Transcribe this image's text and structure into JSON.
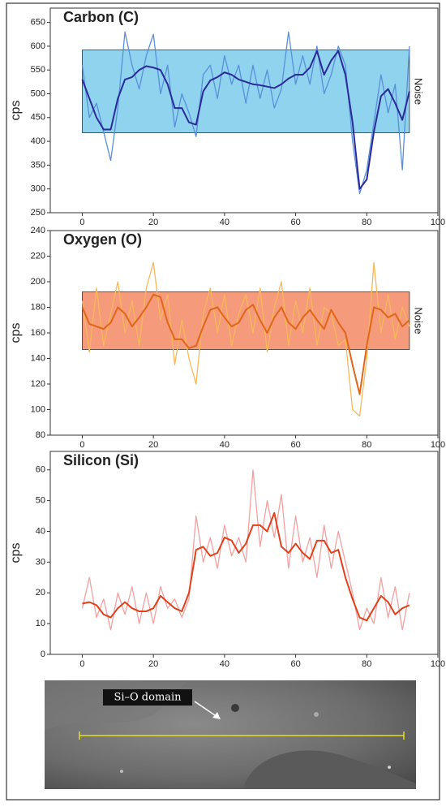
{
  "chart_data": [
    {
      "type": "line",
      "title": "Carbon (C)",
      "ylabel": "cps",
      "x": [
        0,
        2,
        4,
        6,
        8,
        10,
        12,
        14,
        16,
        18,
        20,
        22,
        24,
        26,
        28,
        30,
        32,
        34,
        36,
        38,
        40,
        42,
        44,
        46,
        48,
        50,
        52,
        54,
        56,
        58,
        60,
        62,
        64,
        66,
        68,
        70,
        72,
        74,
        76,
        78,
        80,
        82,
        84,
        86,
        88,
        90,
        92
      ],
      "xlim": [
        -9,
        100
      ],
      "xticks": [
        0,
        20,
        40,
        60,
        80,
        100
      ],
      "ylim": [
        250,
        680
      ],
      "yticks": [
        250,
        300,
        350,
        400,
        450,
        500,
        550,
        600,
        650
      ],
      "noise_band": [
        418,
        592
      ],
      "noise_label": "Noise",
      "band_color": "#8fd3ef",
      "series": [
        {
          "color": "#5a8fd8",
          "values": [
            560,
            450,
            480,
            420,
            360,
            470,
            630,
            560,
            510,
            580,
            625,
            500,
            560,
            430,
            500,
            460,
            410,
            540,
            560,
            490,
            580,
            520,
            560,
            480,
            560,
            490,
            550,
            470,
            510,
            630,
            520,
            580,
            520,
            600,
            500,
            540,
            600,
            560,
            400,
            290,
            340,
            440,
            540,
            460,
            520,
            340,
            600
          ]
        },
        {
          "color": "#2a2a9a",
          "values": [
            530,
            490,
            450,
            425,
            425,
            490,
            530,
            535,
            550,
            558,
            555,
            550,
            520,
            470,
            470,
            440,
            435,
            505,
            528,
            535,
            545,
            540,
            530,
            525,
            520,
            518,
            515,
            512,
            520,
            532,
            540,
            540,
            555,
            590,
            540,
            570,
            590,
            540,
            440,
            300,
            320,
            420,
            495,
            510,
            480,
            445,
            505
          ]
        }
      ]
    },
    {
      "type": "line",
      "title": "Oxygen (O)",
      "ylabel": "cps",
      "x": [
        0,
        2,
        4,
        6,
        8,
        10,
        12,
        14,
        16,
        18,
        20,
        22,
        24,
        26,
        28,
        30,
        32,
        34,
        36,
        38,
        40,
        42,
        44,
        46,
        48,
        50,
        52,
        54,
        56,
        58,
        60,
        62,
        64,
        66,
        68,
        70,
        72,
        74,
        76,
        78,
        80,
        82,
        84,
        86,
        88,
        90,
        92
      ],
      "xlim": [
        -9,
        100
      ],
      "xticks": [
        0,
        20,
        40,
        60,
        80,
        100
      ],
      "ylim": [
        80,
        240
      ],
      "yticks": [
        80,
        100,
        120,
        140,
        160,
        180,
        200,
        220,
        240
      ],
      "noise_band": [
        147,
        192
      ],
      "noise_label": "Noise",
      "band_color": "#f59a7a",
      "series": [
        {
          "color": "#f7b85a",
          "values": [
            185,
            145,
            195,
            150,
            175,
            200,
            160,
            185,
            150,
            195,
            215,
            170,
            190,
            135,
            170,
            140,
            120,
            175,
            195,
            160,
            190,
            150,
            175,
            190,
            160,
            195,
            145,
            180,
            200,
            150,
            185,
            160,
            195,
            150,
            180,
            175,
            150,
            155,
            100,
            95,
            140,
            215,
            160,
            190,
            155,
            180,
            165
          ]
        },
        {
          "color": "#e0661a",
          "values": [
            180,
            167,
            165,
            163,
            168,
            180,
            175,
            165,
            172,
            180,
            190,
            188,
            168,
            155,
            155,
            148,
            150,
            165,
            178,
            180,
            172,
            165,
            168,
            178,
            182,
            170,
            160,
            172,
            180,
            168,
            163,
            172,
            178,
            170,
            163,
            178,
            168,
            160,
            135,
            112,
            150,
            180,
            178,
            172,
            175,
            165,
            170
          ]
        }
      ]
    },
    {
      "type": "line",
      "title": "Silicon (Si)",
      "ylabel": "cps",
      "x": [
        0,
        2,
        4,
        6,
        8,
        10,
        12,
        14,
        16,
        18,
        20,
        22,
        24,
        26,
        28,
        30,
        32,
        34,
        36,
        38,
        40,
        42,
        44,
        46,
        48,
        50,
        52,
        54,
        56,
        58,
        60,
        62,
        64,
        66,
        68,
        70,
        72,
        74,
        76,
        78,
        80,
        82,
        84,
        86,
        88,
        90,
        92
      ],
      "xlim": [
        -9,
        100
      ],
      "xticks": [
        0,
        20,
        40,
        60,
        80,
        100
      ],
      "ylim": [
        0,
        66
      ],
      "yticks": [
        0,
        10,
        20,
        30,
        40,
        50,
        60
      ],
      "series": [
        {
          "color": "#f4a0a0",
          "values": [
            15,
            25,
            12,
            18,
            8,
            20,
            13,
            22,
            10,
            20,
            10,
            22,
            15,
            18,
            12,
            18,
            45,
            30,
            38,
            28,
            42,
            32,
            38,
            30,
            60,
            35,
            50,
            38,
            52,
            28,
            45,
            30,
            38,
            25,
            42,
            28,
            40,
            30,
            20,
            8,
            15,
            10,
            25,
            12,
            22,
            8,
            20
          ]
        },
        {
          "color": "#e0401a",
          "values": [
            16.5,
            17,
            16,
            13,
            12,
            15,
            17,
            15,
            14,
            14,
            15,
            19,
            17,
            15,
            14,
            20,
            34,
            35,
            32,
            33,
            38,
            37,
            33,
            36,
            42,
            42,
            40,
            46,
            35,
            33,
            36,
            33,
            31,
            37,
            37,
            33,
            34,
            25,
            18,
            12,
            11,
            15,
            19,
            17,
            13,
            15,
            16
          ]
        }
      ]
    }
  ],
  "image": {
    "label": "Si–O domain"
  }
}
